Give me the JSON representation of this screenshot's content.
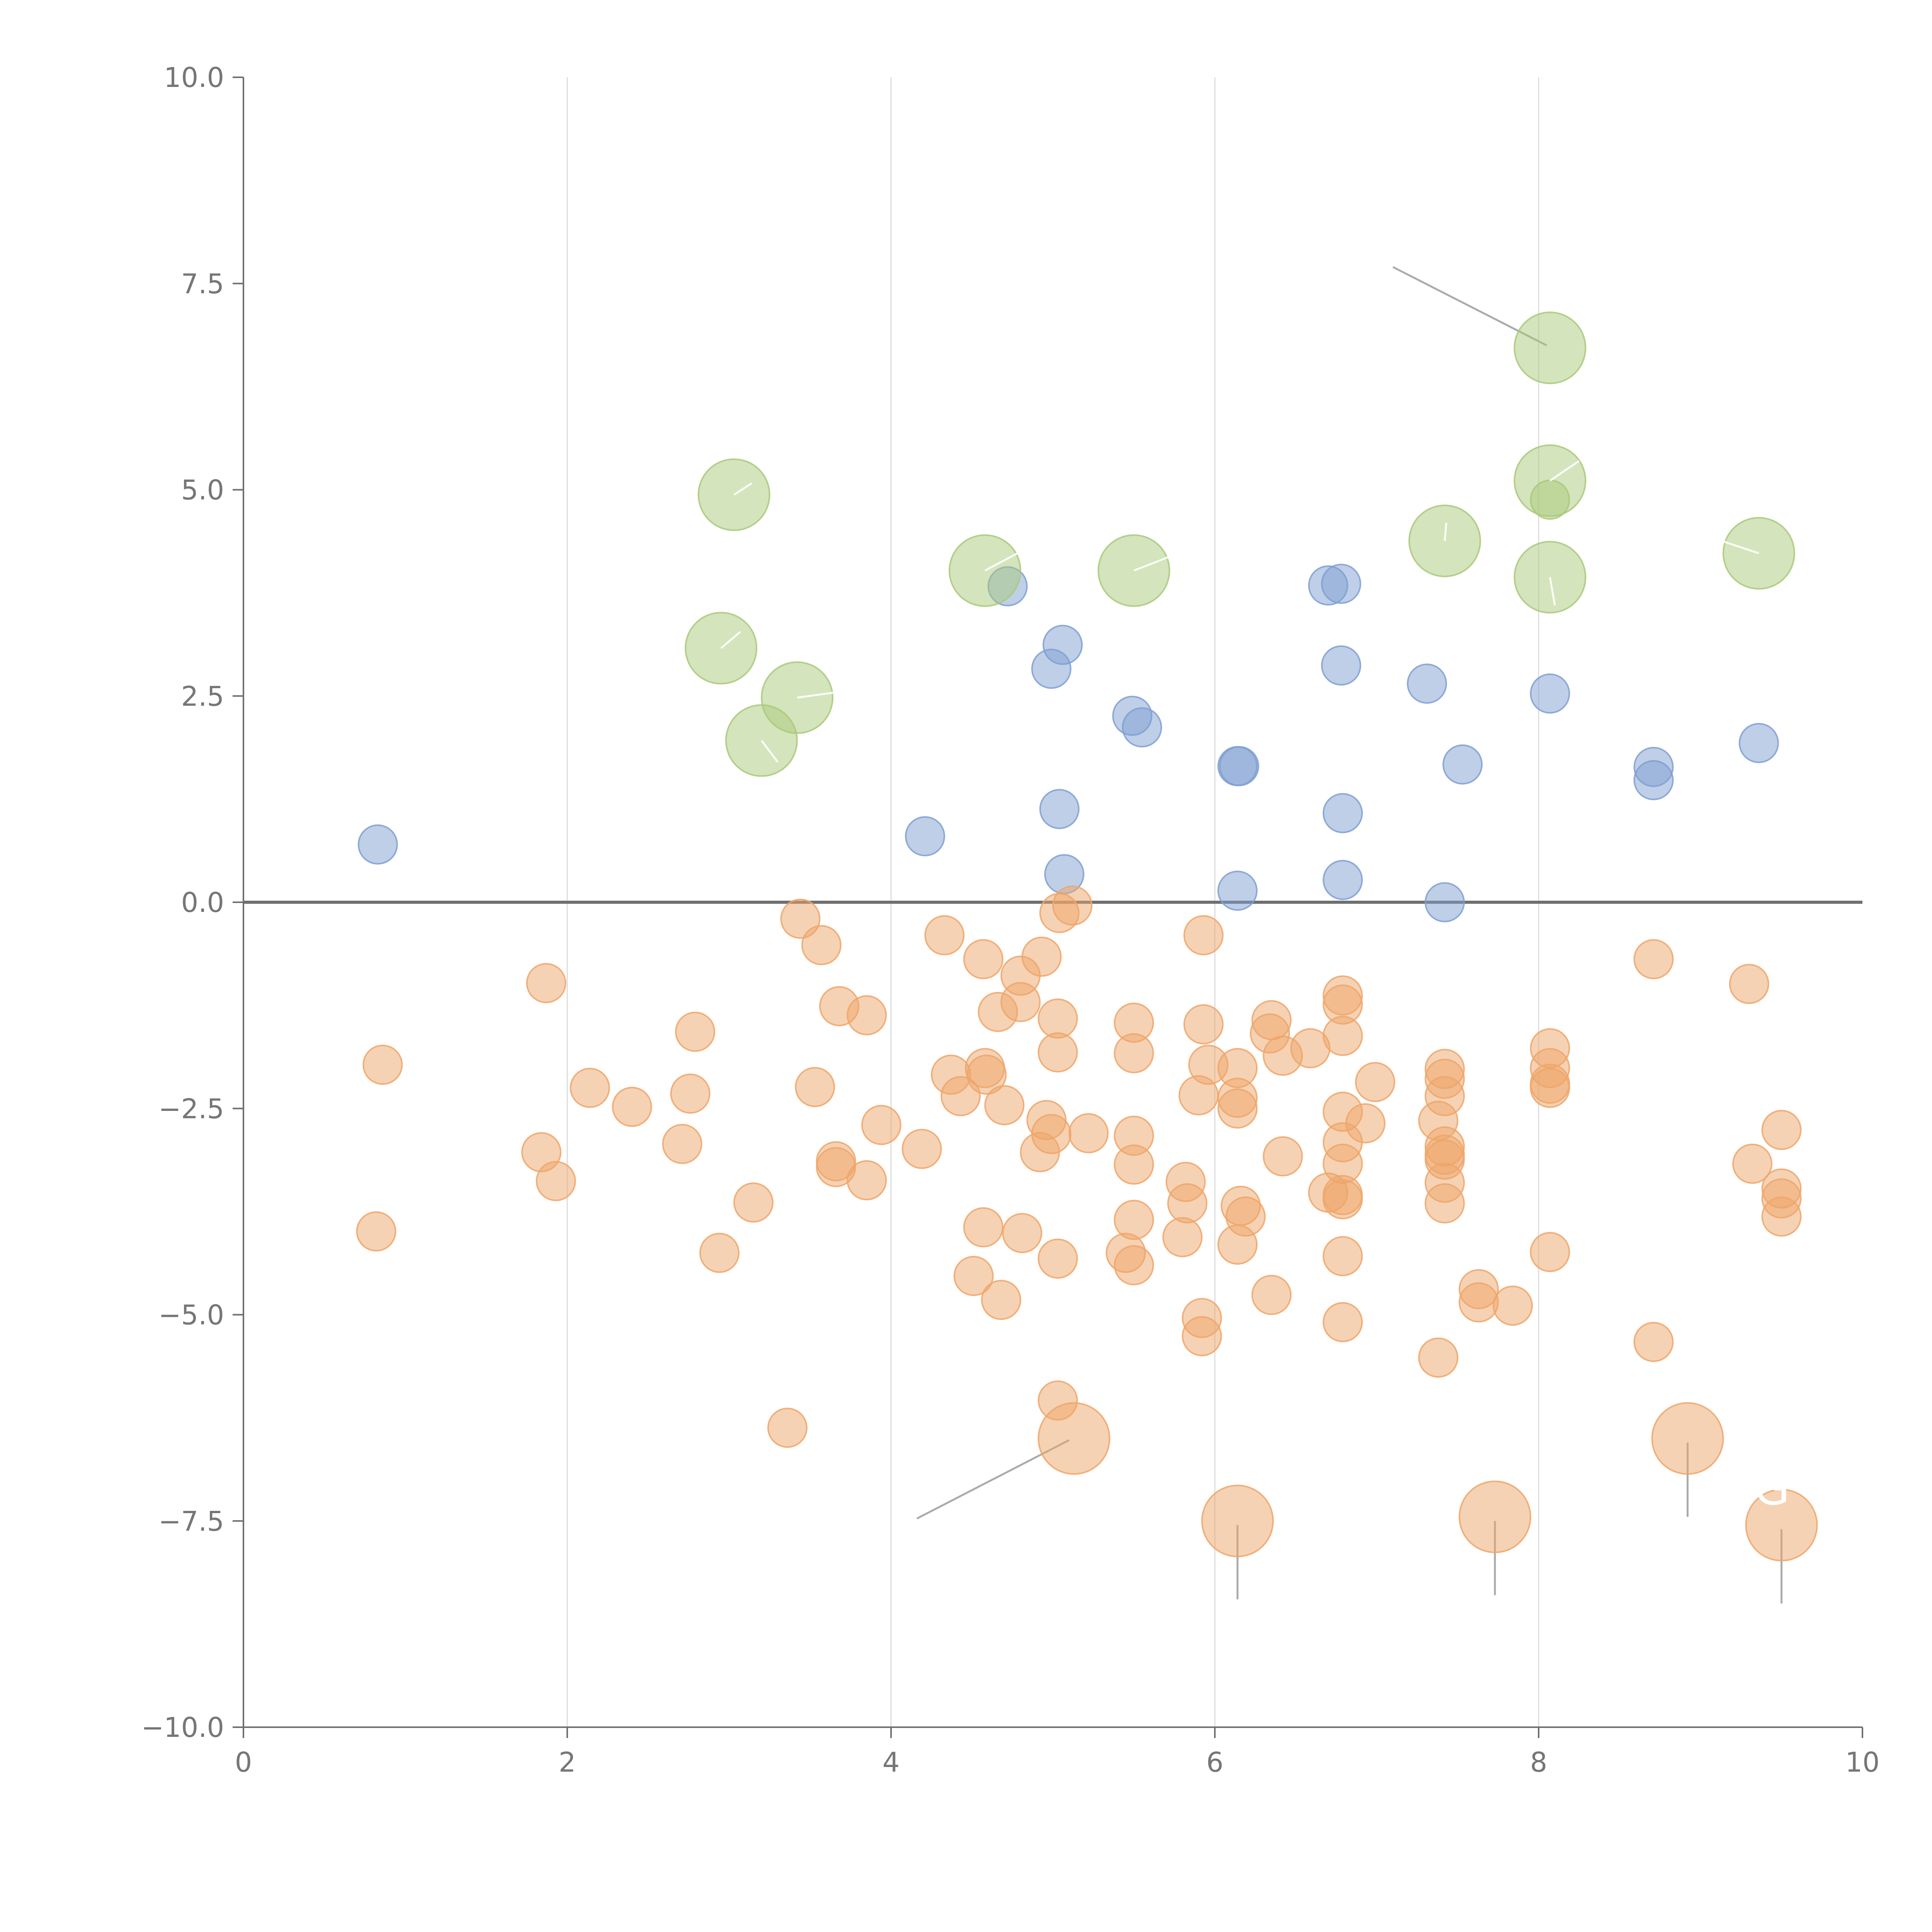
{
  "chart_data": {
    "type": "scatter",
    "title": "",
    "xlabel": "",
    "ylabel": "",
    "xlim": [
      0,
      10
    ],
    "ylim": [
      -10,
      10
    ],
    "grid": "vertical",
    "x_ticks": [
      "0",
      "2",
      "4",
      "6",
      "8",
      "10"
    ],
    "y_ticks": [
      "10.0",
      "7.5",
      "5.0",
      "2.5",
      "0.0",
      "−2.5",
      "−5.0",
      "−7.5",
      "−10.0"
    ],
    "colors": {
      "blue": "#7f9fd2",
      "orange": "#eea66a",
      "green": "#a9c97a",
      "axis": "#6f6f6f",
      "grid": "#dcdcdc"
    },
    "series": [
      {
        "name": "blue",
        "color": "#7f9fd2",
        "size": "small",
        "points": [
          [
            0.83,
            0.7
          ],
          [
            4.21,
            0.8
          ],
          [
            4.72,
            3.83
          ],
          [
            4.99,
            2.83
          ],
          [
            5.06,
            3.12
          ],
          [
            5.04,
            1.13
          ],
          [
            5.07,
            0.34
          ],
          [
            5.49,
            2.26
          ],
          [
            5.55,
            2.12
          ],
          [
            6.14,
            1.65
          ],
          [
            6.15,
            1.65
          ],
          [
            6.14,
            0.14
          ],
          [
            6.7,
            3.84
          ],
          [
            6.78,
            3.86
          ],
          [
            6.78,
            2.87
          ],
          [
            6.79,
            1.08
          ],
          [
            6.79,
            0.27
          ],
          [
            7.31,
            2.65
          ],
          [
            7.42,
            0.0
          ],
          [
            7.53,
            1.67
          ],
          [
            8.07,
            2.53
          ],
          [
            8.71,
            1.64
          ],
          [
            8.71,
            1.48
          ],
          [
            9.36,
            1.93
          ]
        ]
      },
      {
        "name": "orange",
        "color": "#eea66a",
        "size": "small",
        "points": [
          [
            0.86,
            -1.97
          ],
          [
            0.82,
            -3.99
          ],
          [
            1.87,
            -0.98
          ],
          [
            1.84,
            -3.03
          ],
          [
            1.93,
            -3.38
          ],
          [
            2.14,
            -2.25
          ],
          [
            2.4,
            -2.48
          ],
          [
            2.79,
            -1.57
          ],
          [
            2.76,
            -2.32
          ],
          [
            2.71,
            -2.93
          ],
          [
            2.94,
            -4.25
          ],
          [
            3.15,
            -3.64
          ],
          [
            3.36,
            -6.37
          ],
          [
            3.44,
            -0.2
          ],
          [
            3.57,
            -0.52
          ],
          [
            3.53,
            -2.24
          ],
          [
            3.68,
            -1.26
          ],
          [
            3.66,
            -3.14
          ],
          [
            3.66,
            -3.21
          ],
          [
            3.85,
            -1.37
          ],
          [
            3.85,
            -3.37
          ],
          [
            3.94,
            -2.7
          ],
          [
            4.19,
            -2.99
          ],
          [
            4.33,
            -0.4
          ],
          [
            4.37,
            -2.09
          ],
          [
            4.43,
            -2.35
          ],
          [
            4.57,
            -0.69
          ],
          [
            4.58,
            -2.01
          ],
          [
            4.59,
            -2.09
          ],
          [
            4.57,
            -3.94
          ],
          [
            4.51,
            -4.53
          ],
          [
            4.66,
            -1.33
          ],
          [
            4.7,
            -2.46
          ],
          [
            4.68,
            -4.82
          ],
          [
            4.8,
            -0.89
          ],
          [
            4.8,
            -1.21
          ],
          [
            4.81,
            -4.01
          ],
          [
            4.93,
            -0.66
          ],
          [
            4.96,
            -2.64
          ],
          [
            4.99,
            -2.81
          ],
          [
            4.92,
            -3.03
          ],
          [
            5.03,
            -1.41
          ],
          [
            5.03,
            -1.82
          ],
          [
            5.03,
            -4.32
          ],
          [
            5.03,
            -6.04
          ],
          [
            5.04,
            -0.13
          ],
          [
            5.12,
            -0.04
          ],
          [
            5.22,
            -2.8
          ],
          [
            5.5,
            -1.46
          ],
          [
            5.5,
            -1.83
          ],
          [
            5.5,
            -2.83
          ],
          [
            5.5,
            -3.18
          ],
          [
            5.5,
            -3.85
          ],
          [
            5.45,
            -4.25
          ],
          [
            5.5,
            -4.4
          ],
          [
            5.93,
            -0.4
          ],
          [
            5.93,
            -1.48
          ],
          [
            5.96,
            -1.97
          ],
          [
            5.9,
            -2.34
          ],
          [
            5.82,
            -3.39
          ],
          [
            5.83,
            -3.65
          ],
          [
            5.8,
            -4.06
          ],
          [
            5.92,
            -5.04
          ],
          [
            5.92,
            -5.26
          ],
          [
            6.14,
            -2.01
          ],
          [
            6.14,
            -2.37
          ],
          [
            6.14,
            -2.5
          ],
          [
            6.16,
            -3.68
          ],
          [
            6.19,
            -3.81
          ],
          [
            6.14,
            -4.15
          ],
          [
            6.35,
            -1.43
          ],
          [
            6.34,
            -1.59
          ],
          [
            6.42,
            -1.86
          ],
          [
            6.42,
            -3.08
          ],
          [
            6.35,
            -4.76
          ],
          [
            6.59,
            -1.77
          ],
          [
            6.79,
            -1.13
          ],
          [
            6.79,
            -1.24
          ],
          [
            6.79,
            -1.62
          ],
          [
            6.79,
            -2.54
          ],
          [
            6.79,
            -2.91
          ],
          [
            6.79,
            -3.17
          ],
          [
            6.7,
            -3.52
          ],
          [
            6.79,
            -3.55
          ],
          [
            6.79,
            -3.6
          ],
          [
            6.79,
            -4.29
          ],
          [
            6.79,
            -5.09
          ],
          [
            6.99,
            -2.18
          ],
          [
            6.93,
            -2.68
          ],
          [
            7.42,
            -2.02
          ],
          [
            7.42,
            -2.14
          ],
          [
            7.42,
            -2.35
          ],
          [
            7.38,
            -2.65
          ],
          [
            7.42,
            -2.96
          ],
          [
            7.42,
            -3.06
          ],
          [
            7.42,
            -3.12
          ],
          [
            7.42,
            -3.4
          ],
          [
            7.42,
            -3.65
          ],
          [
            7.38,
            -5.52
          ],
          [
            7.63,
            -4.69
          ],
          [
            7.63,
            -4.85
          ],
          [
            7.84,
            -4.89
          ],
          [
            8.07,
            -1.77
          ],
          [
            8.07,
            -2.01
          ],
          [
            8.07,
            -2.2
          ],
          [
            8.07,
            -2.25
          ],
          [
            8.07,
            -4.24
          ],
          [
            8.71,
            -0.69
          ],
          [
            8.71,
            -5.33
          ],
          [
            9.3,
            -0.99
          ],
          [
            9.32,
            -3.17
          ],
          [
            9.5,
            -2.76
          ],
          [
            9.5,
            -3.47
          ],
          [
            9.5,
            -3.59
          ],
          [
            9.5,
            -3.81
          ]
        ]
      },
      {
        "name": "green",
        "color": "#a9c97a",
        "size": "large",
        "points": [
          [
            3.03,
            4.94
          ],
          [
            2.95,
            3.08
          ],
          [
            3.42,
            2.48
          ],
          [
            3.2,
            1.96
          ],
          [
            4.58,
            4.02
          ],
          [
            5.5,
            4.02
          ],
          [
            7.42,
            4.38
          ],
          [
            8.07,
            6.72
          ],
          [
            8.07,
            5.11
          ],
          [
            8.07,
            3.94
          ],
          [
            9.36,
            4.23
          ]
        ]
      },
      {
        "name": "orange-large",
        "color": "#eea66a",
        "size": "large",
        "points": [
          [
            5.13,
            -6.5
          ],
          [
            6.14,
            -7.5
          ],
          [
            7.73,
            -7.45
          ],
          [
            8.92,
            -6.5
          ],
          [
            9.5,
            -7.55
          ]
        ]
      },
      {
        "name": "green-overlay",
        "color": "#a9c97a",
        "size": "small",
        "points": [
          [
            8.07,
            4.88
          ]
        ]
      }
    ],
    "annotations": [
      {
        "from": [
          7.1,
          7.7
        ],
        "to": [
          8.05,
          6.75
        ],
        "style": "grey"
      },
      {
        "from": [
          4.16,
          -7.47
        ],
        "to": [
          5.1,
          -6.52
        ],
        "style": "grey"
      },
      {
        "from": [
          6.14,
          -7.55
        ],
        "to": [
          6.14,
          -8.45
        ],
        "style": "grey"
      },
      {
        "from": [
          7.73,
          -7.5
        ],
        "to": [
          7.73,
          -8.4
        ],
        "style": "grey"
      },
      {
        "from": [
          8.92,
          -6.55
        ],
        "to": [
          8.92,
          -7.45
        ],
        "style": "grey"
      },
      {
        "from": [
          9.5,
          -7.6
        ],
        "to": [
          9.5,
          -8.5
        ],
        "style": "grey"
      },
      {
        "from": [
          3.14,
          5.08
        ],
        "to": [
          3.03,
          4.94
        ],
        "style": "white"
      },
      {
        "from": [
          3.07,
          3.28
        ],
        "to": [
          2.95,
          3.08
        ],
        "style": "white"
      },
      {
        "from": [
          3.68,
          2.55
        ],
        "to": [
          3.42,
          2.48
        ],
        "style": "white"
      },
      {
        "from": [
          3.3,
          1.7
        ],
        "to": [
          3.2,
          1.96
        ],
        "style": "white"
      },
      {
        "from": [
          4.8,
          4.25
        ],
        "to": [
          4.58,
          4.02
        ],
        "style": "white"
      },
      {
        "from": [
          5.8,
          4.25
        ],
        "to": [
          5.5,
          4.02
        ],
        "style": "white"
      },
      {
        "from": [
          7.43,
          4.6
        ],
        "to": [
          7.42,
          4.38
        ],
        "style": "white"
      },
      {
        "from": [
          8.25,
          5.35
        ],
        "to": [
          8.07,
          5.11
        ],
        "style": "white"
      },
      {
        "from": [
          8.1,
          3.6
        ],
        "to": [
          8.07,
          3.94
        ],
        "style": "white"
      },
      {
        "from": [
          9.1,
          4.4
        ],
        "to": [
          9.36,
          4.23
        ],
        "style": "white"
      }
    ],
    "text_annotations": [
      {
        "text": "GG",
        "x": 9.33,
        "y": -7.3
      }
    ]
  }
}
